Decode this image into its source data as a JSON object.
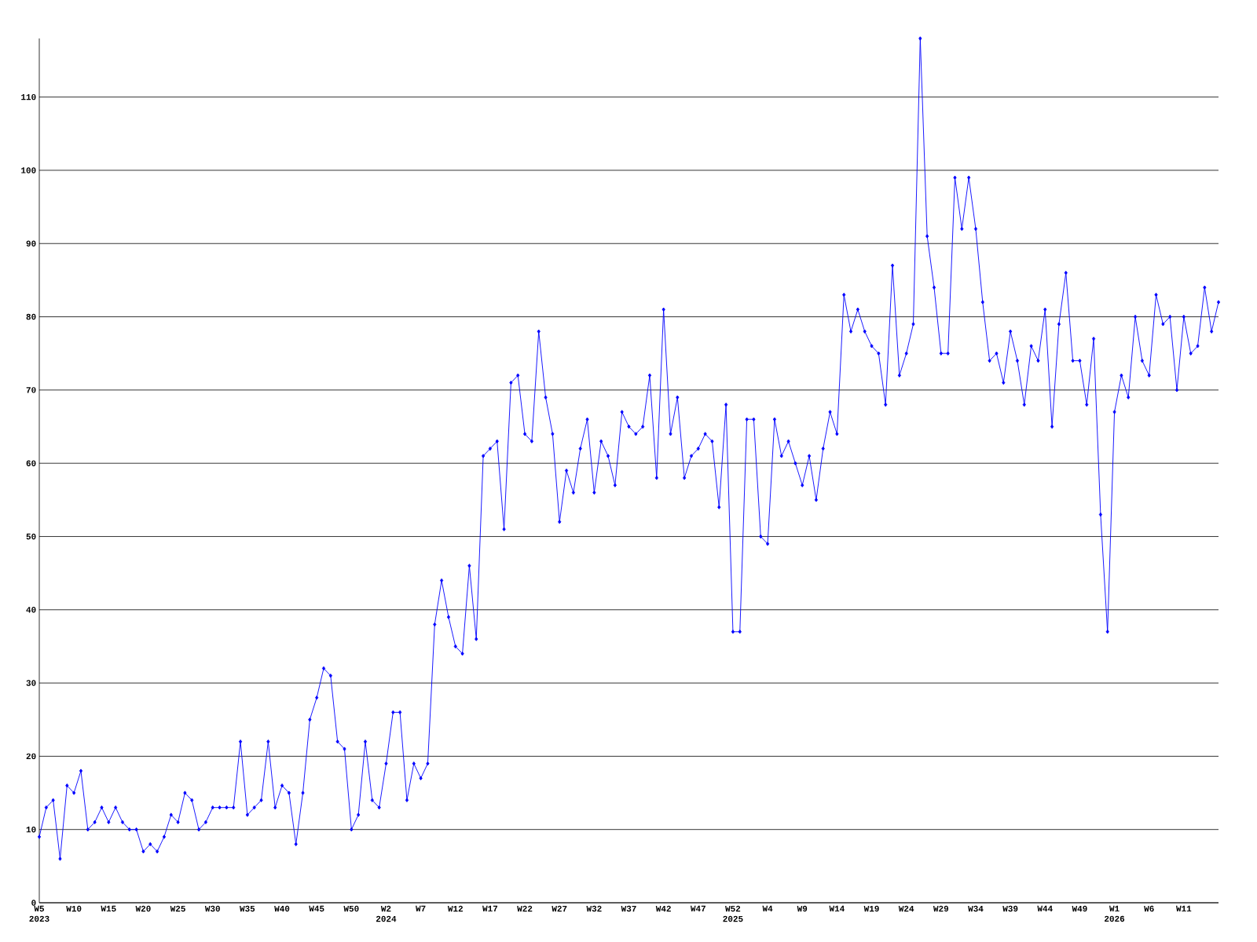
{
  "chart_data": {
    "type": "line",
    "categories": [
      "W5 2023",
      null,
      null,
      null,
      null,
      "W10",
      null,
      null,
      null,
      null,
      "W15",
      null,
      null,
      null,
      null,
      "W20",
      null,
      null,
      null,
      null,
      "W25",
      null,
      null,
      null,
      null,
      "W30",
      null,
      null,
      null,
      null,
      "W35",
      null,
      null,
      null,
      null,
      "W40",
      null,
      null,
      null,
      null,
      "W45",
      null,
      null,
      null,
      null,
      "W50",
      null,
      null,
      null,
      null,
      "W2 2024",
      null,
      null,
      null,
      null,
      "W7",
      null,
      null,
      null,
      null,
      "W12",
      null,
      null,
      null,
      null,
      "W17",
      null,
      null,
      null,
      null,
      "W22",
      null,
      null,
      null,
      null,
      "W27",
      null,
      null,
      null,
      null,
      "W32",
      null,
      null,
      null,
      null,
      "W37",
      null,
      null,
      null,
      null,
      "W42",
      null,
      null,
      null,
      null,
      "W47",
      null,
      null,
      null,
      null,
      "W52 2025",
      null,
      null,
      null,
      null,
      "W4",
      null,
      null,
      null,
      null,
      "W9",
      null,
      null,
      null,
      null,
      "W14",
      null,
      null,
      null,
      null,
      "W19",
      null,
      null,
      null,
      null,
      "W24",
      null,
      null,
      null,
      null,
      "W29",
      null,
      null,
      null,
      null,
      "W34",
      null,
      null,
      null,
      null,
      "W39",
      null,
      null,
      null,
      null,
      "W44",
      null,
      null,
      null,
      null,
      "W49",
      null,
      null,
      null,
      null,
      "W1 2026",
      null,
      null,
      null,
      null,
      "W6",
      null,
      null,
      null,
      null,
      "W11",
      null,
      null,
      null,
      null,
      null
    ],
    "values": [
      9,
      13,
      14,
      6,
      16,
      15,
      18,
      10,
      11,
      13,
      11,
      13,
      11,
      10,
      10,
      7,
      8,
      7,
      9,
      12,
      11,
      15,
      14,
      10,
      11,
      13,
      13,
      13,
      13,
      22,
      12,
      13,
      14,
      22,
      13,
      16,
      15,
      8,
      15,
      25,
      28,
      32,
      31,
      22,
      21,
      10,
      12,
      22,
      14,
      13,
      19,
      26,
      26,
      14,
      19,
      17,
      19,
      38,
      44,
      39,
      35,
      34,
      46,
      36,
      61,
      62,
      63,
      51,
      71,
      72,
      64,
      63,
      78,
      69,
      64,
      52,
      59,
      56,
      62,
      66,
      56,
      63,
      61,
      57,
      67,
      65,
      64,
      65,
      72,
      58,
      81,
      64,
      69,
      58,
      61,
      62,
      64,
      63,
      54,
      68,
      37,
      37,
      66,
      66,
      50,
      49,
      66,
      61,
      63,
      60,
      57,
      61,
      55,
      62,
      67,
      64,
      83,
      78,
      81,
      78,
      76,
      75,
      68,
      87,
      72,
      75,
      79,
      118,
      91,
      84,
      75,
      75,
      99,
      92,
      99,
      92,
      82,
      74,
      75,
      71,
      78,
      74,
      68,
      76,
      74,
      81,
      65,
      79,
      86,
      74,
      74,
      68,
      77,
      53,
      37,
      67,
      72,
      69,
      80,
      74,
      72,
      83,
      79,
      80,
      70,
      80,
      75,
      76,
      84,
      78,
      82
    ],
    "color": "#0000ff",
    "ylim": [
      0,
      118
    ],
    "yticks": [
      0,
      10,
      20,
      30,
      40,
      50,
      60,
      70,
      80,
      90,
      100,
      110
    ],
    "grid": "y",
    "marker": "diamond",
    "line_style": "solid"
  }
}
